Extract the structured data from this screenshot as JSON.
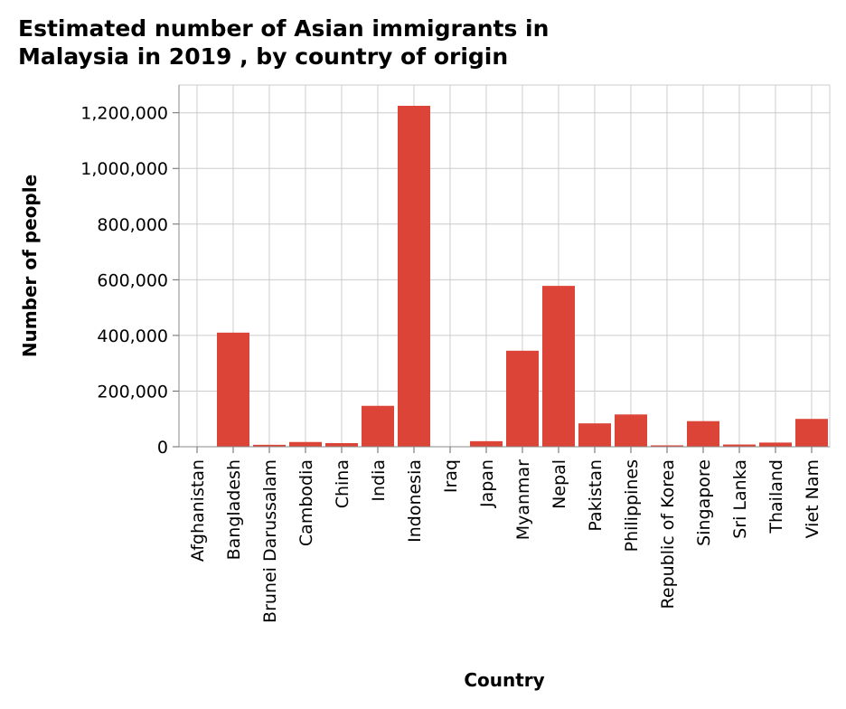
{
  "chart_data": {
    "type": "bar",
    "title": "Estimated number of Asian immigrants in\nMalaysia in 2019 , by country of origin",
    "xlabel": "Country",
    "ylabel": "Number of people",
    "ylim": [
      0,
      1300000
    ],
    "yticks": [
      0,
      200000,
      400000,
      600000,
      800000,
      1000000,
      1200000
    ],
    "ytick_labels": [
      "0",
      "200,000",
      "400,000",
      "600,000",
      "800,000",
      "1,000,000",
      "1,200,000"
    ],
    "grid": true,
    "bar_color": "#dc4437",
    "categories": [
      "Afghanistan",
      "Bangladesh",
      "Brunei Darussalam",
      "Cambodia",
      "China",
      "India",
      "Indonesia",
      "Iraq",
      "Japan",
      "Myanmar",
      "Nepal",
      "Pakistan",
      "Philippines",
      "Republic of Korea",
      "Singapore",
      "Sri Lanka",
      "Thailand",
      "Viet Nam"
    ],
    "values": [
      1000,
      410000,
      7000,
      17000,
      13000,
      147000,
      1225000,
      1500,
      20000,
      345000,
      578000,
      84000,
      116000,
      5000,
      92000,
      8000,
      15000,
      100000
    ]
  }
}
